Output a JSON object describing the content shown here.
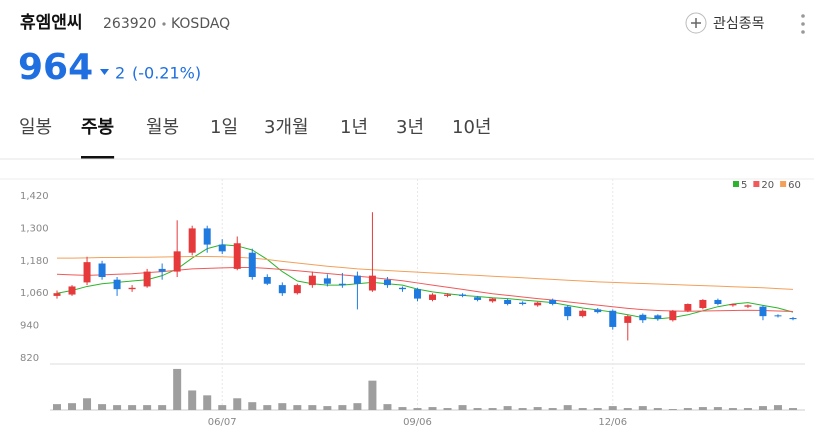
{
  "header": {
    "name": "휴엠앤씨",
    "code": "263920",
    "market": "KOSDAQ",
    "watch_button": "관심종목",
    "price": "964",
    "change": "2",
    "change_rate": "(-0.21%)"
  },
  "tabs": {
    "items": [
      "일봉",
      "주봉",
      "월봉",
      "1일",
      "3개월",
      "1년",
      "3년",
      "10년"
    ],
    "selected": 1
  },
  "chart_data": {
    "type": "candlestick",
    "categories": [
      null,
      null,
      null,
      null,
      null,
      null,
      null,
      null,
      null,
      null,
      null,
      "06/07",
      null,
      null,
      null,
      null,
      null,
      null,
      null,
      null,
      null,
      null,
      null,
      null,
      "09/06",
      null,
      null,
      null,
      null,
      null,
      null,
      null,
      null,
      null,
      null,
      null,
      null,
      "12/06",
      null,
      null,
      null,
      null,
      null,
      null,
      null,
      null,
      null,
      null,
      null,
      null
    ],
    "open": [
      1050,
      1055,
      1100,
      1170,
      1110,
      1075,
      1085,
      1150,
      1140,
      1210,
      1300,
      1240,
      1150,
      1210,
      1120,
      1090,
      1060,
      1090,
      1115,
      1095,
      1125,
      1070,
      1110,
      1080,
      1075,
      1035,
      1050,
      1055,
      1045,
      1030,
      1035,
      1025,
      1015,
      1035,
      1010,
      975,
      1000,
      995,
      950,
      980,
      978,
      960,
      995,
      1005,
      1035,
      1015,
      1010,
      1010,
      978,
      968
    ],
    "high": [
      1070,
      1090,
      1195,
      1180,
      1120,
      1090,
      1150,
      1170,
      1330,
      1310,
      1310,
      1260,
      1270,
      1225,
      1130,
      1100,
      1095,
      1140,
      1130,
      1135,
      1140,
      1360,
      1120,
      1085,
      1080,
      1060,
      1060,
      1060,
      1050,
      1042,
      1040,
      1030,
      1028,
      1040,
      1015,
      1000,
      1005,
      1000,
      980,
      985,
      982,
      998,
      1022,
      1038,
      1040,
      1022,
      1018,
      1015,
      982,
      972
    ],
    "low": [
      1040,
      1050,
      1090,
      1110,
      1050,
      1065,
      1080,
      1110,
      1120,
      1200,
      1210,
      1205,
      1145,
      1110,
      1090,
      1050,
      1055,
      1080,
      1085,
      1080,
      1000,
      1065,
      1080,
      1065,
      1030,
      1030,
      1045,
      1045,
      1030,
      1025,
      1015,
      1015,
      1010,
      1015,
      960,
      970,
      985,
      925,
      885,
      950,
      958,
      955,
      990,
      1000,
      1015,
      1010,
      1005,
      960,
      970,
      960
    ],
    "close": [
      1060,
      1085,
      1175,
      1120,
      1075,
      1080,
      1140,
      1140,
      1215,
      1300,
      1240,
      1215,
      1245,
      1120,
      1095,
      1060,
      1090,
      1125,
      1095,
      1090,
      1095,
      1125,
      1090,
      1075,
      1040,
      1055,
      1055,
      1050,
      1035,
      1040,
      1020,
      1020,
      1025,
      1020,
      975,
      995,
      990,
      935,
      975,
      960,
      965,
      995,
      1020,
      1035,
      1020,
      1020,
      1015,
      975,
      975,
      964
    ],
    "ylim": [
      820,
      1420
    ],
    "yticks": [
      {
        "value": 1420,
        "label": "1,420"
      },
      {
        "value": 1300,
        "label": "1,300"
      },
      {
        "value": 1180,
        "label": "1,180"
      },
      {
        "value": 1060,
        "label": "1,060"
      },
      940,
      820
    ],
    "up_color": "#e5393b",
    "down_color": "#1f7ae0",
    "series": [
      {
        "name": "5",
        "color": "#2cb52c",
        "values": [
          1060,
          1070,
          1085,
          1095,
          1100,
          1105,
          1110,
          1125,
          1150,
          1190,
          1225,
          1240,
          1235,
          1220,
          1185,
          1140,
          1105,
          1095,
          1090,
          1090,
          1095,
          1100,
          1095,
          1090,
          1075,
          1065,
          1058,
          1052,
          1048,
          1043,
          1040,
          1035,
          1030,
          1025,
          1015,
          1005,
          998,
          990,
          980,
          970,
          965,
          970,
          980,
          995,
          1010,
          1020,
          1025,
          1015,
          1005,
          990
        ]
      },
      {
        "name": "20",
        "color": "#f05a5a",
        "values": [
          1130,
          1128,
          1126,
          1128,
          1130,
          1132,
          1136,
          1140,
          1145,
          1150,
          1152,
          1154,
          1155,
          1155,
          1152,
          1148,
          1143,
          1138,
          1133,
          1128,
          1123,
          1118,
          1112,
          1106,
          1098,
          1090,
          1082,
          1074,
          1066,
          1058,
          1052,
          1046,
          1040,
          1035,
          1028,
          1022,
          1016,
          1010,
          1004,
          999,
          996,
          994,
          993,
          994,
          995,
          996,
          997,
          996,
          994,
          992
        ]
      },
      {
        "name": "60",
        "color": "#f2a05a",
        "values": [
          1190,
          1190,
          1191,
          1192,
          1192,
          1193,
          1193,
          1194,
          1195,
          1196,
          1196,
          1195,
          1193,
          1190,
          1185,
          1178,
          1172,
          1166,
          1160,
          1155,
          1150,
          1147,
          1144,
          1141,
          1138,
          1135,
          1132,
          1129,
          1126,
          1123,
          1120,
          1117,
          1114,
          1111,
          1108,
          1105,
          1102,
          1100,
          1098,
          1096,
          1094,
          1092,
          1090,
          1088,
          1086,
          1084,
          1082,
          1080,
          1077,
          1074
        ]
      }
    ],
    "volume": {
      "color": "#9e9e9e",
      "ylim": [
        0,
        45
      ],
      "values": [
        6,
        7,
        12,
        6,
        5,
        5,
        5,
        5,
        42,
        20,
        15,
        5,
        12,
        8,
        5,
        7,
        5,
        5,
        4,
        5,
        7,
        30,
        6,
        3,
        2,
        3,
        2,
        5,
        2,
        2,
        4,
        2,
        3,
        2,
        5,
        2,
        2,
        4,
        2,
        4,
        2,
        1,
        2,
        3,
        3,
        2,
        2,
        4,
        5,
        2
      ]
    }
  }
}
